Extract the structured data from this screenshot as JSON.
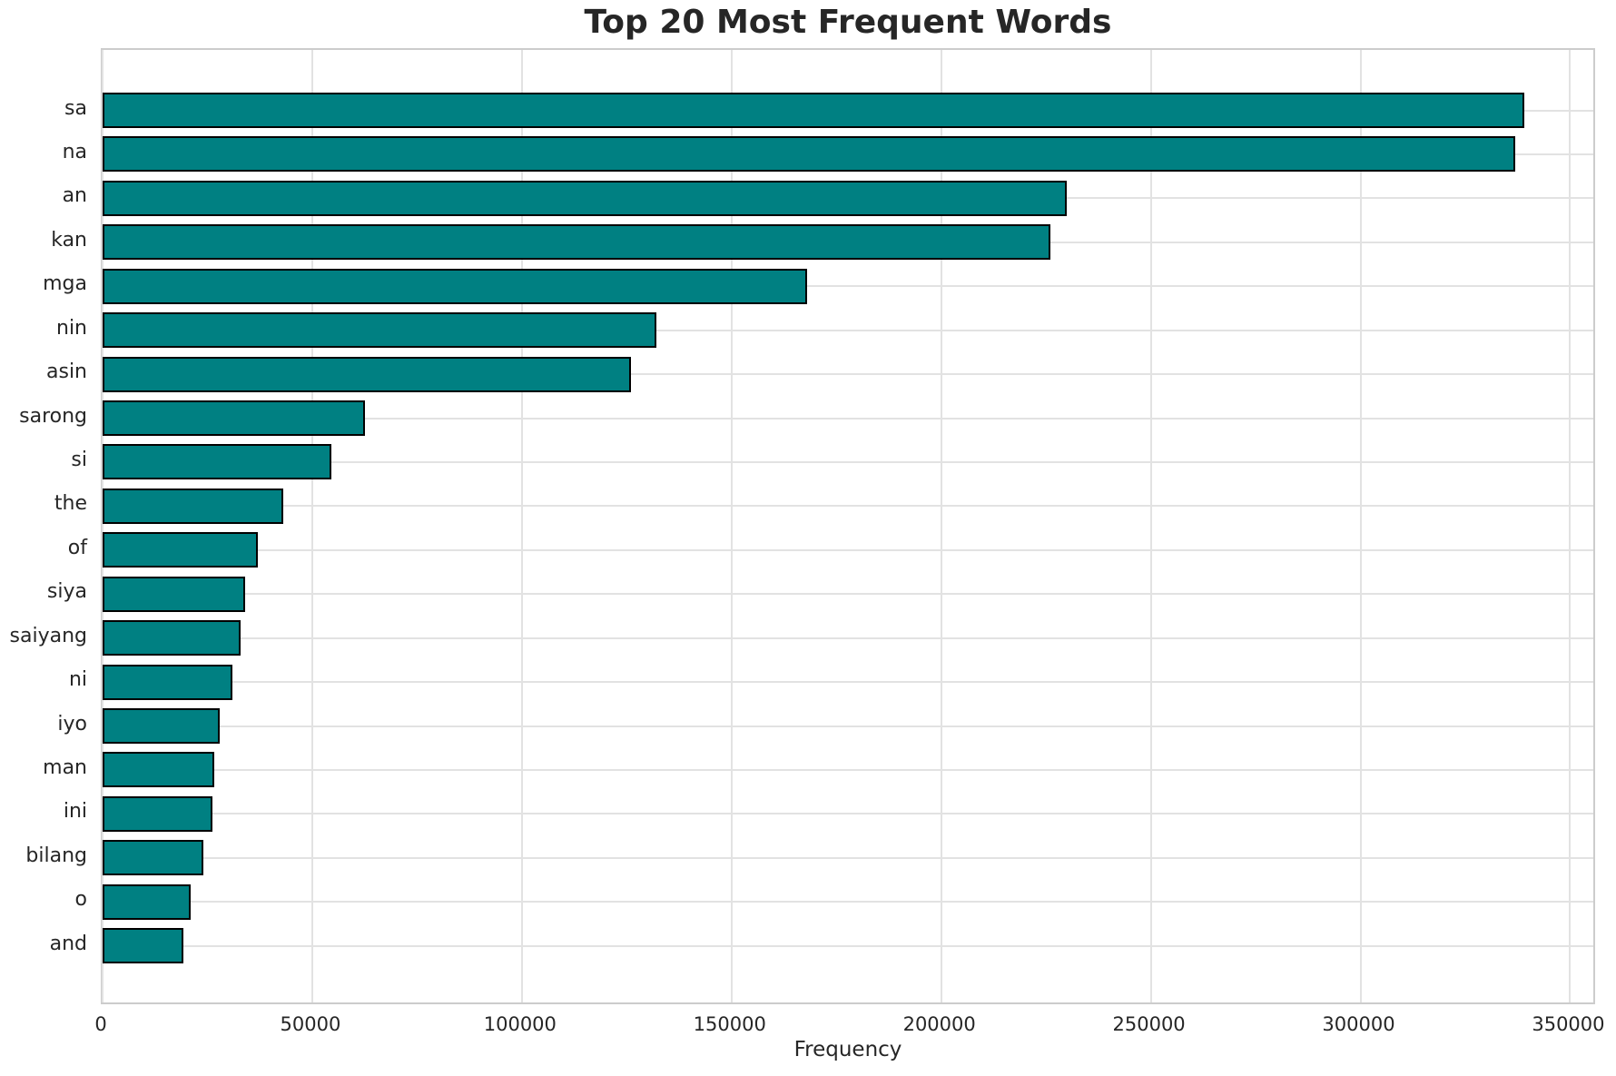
{
  "title": "Top 20 Most Frequent Words",
  "xlabel": "Frequency",
  "colors": {
    "bar_fill": "#008082",
    "bar_edge": "#000000",
    "grid": "#e2e2e2",
    "spine": "#cccccc",
    "text": "#262626",
    "background": "#ffffff"
  },
  "chart_data": {
    "type": "bar",
    "orientation": "horizontal",
    "title": "Top 20 Most Frequent Words",
    "xlabel": "Frequency",
    "ylabel": "",
    "categories": [
      "sa",
      "na",
      "an",
      "kan",
      "mga",
      "nin",
      "asin",
      "sarong",
      "si",
      "the",
      "of",
      "siya",
      "saiyang",
      "ni",
      "iyo",
      "man",
      "ini",
      "bilang",
      "o",
      "and"
    ],
    "values": [
      339000,
      337000,
      230000,
      226000,
      168000,
      132000,
      126000,
      62500,
      54500,
      43000,
      37000,
      34000,
      33000,
      31000,
      28000,
      26600,
      26200,
      24000,
      21000,
      19300
    ],
    "x_ticks": [
      0,
      50000,
      100000,
      150000,
      200000,
      250000,
      300000,
      350000
    ],
    "x_tick_labels": [
      "0",
      "50000",
      "100000",
      "150000",
      "200000",
      "250000",
      "300000",
      "350000"
    ],
    "xlim": [
      0,
      356400
    ],
    "grid": true,
    "legend_position": "none"
  }
}
